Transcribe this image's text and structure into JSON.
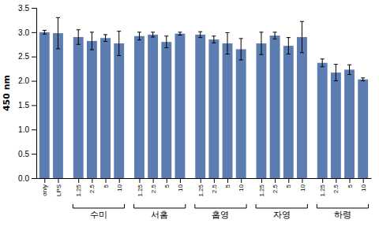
{
  "chart_data": {
    "type": "bar",
    "ylabel": "450 nm",
    "categories": [
      "only",
      "LPS",
      "1.25",
      "2.5",
      "5",
      "10",
      "1.25",
      "2.5",
      "5",
      "10",
      "1.25",
      "2.5",
      "5",
      "10",
      "1.25",
      "2.5",
      "5",
      "10",
      "1.25",
      "2.5",
      "5",
      "10"
    ],
    "values": [
      3.0,
      2.98,
      2.9,
      2.82,
      2.88,
      2.77,
      2.92,
      2.95,
      2.8,
      2.97,
      2.95,
      2.85,
      2.77,
      2.65,
      2.77,
      2.93,
      2.72,
      2.9,
      2.37,
      2.17,
      2.23,
      2.03
    ],
    "errors": [
      0.04,
      0.32,
      0.15,
      0.18,
      0.07,
      0.25,
      0.08,
      0.05,
      0.12,
      0.03,
      0.06,
      0.07,
      0.22,
      0.22,
      0.23,
      0.07,
      0.17,
      0.32,
      0.08,
      0.17,
      0.1,
      0.03
    ],
    "color": "#5b7db1",
    "ylim": [
      0,
      3.5
    ],
    "yticks": [
      {
        "value": 0,
        "label": "0.0"
      },
      0.5,
      {
        "value": 1,
        "label": "1.0"
      },
      1.5,
      {
        "value": 2,
        "label": "2.0"
      },
      2.5,
      {
        "value": 3,
        "label": "3.0"
      },
      3.5
    ],
    "groups": [
      {
        "label": "수미",
        "indices": [
          2,
          3,
          4,
          5
        ]
      },
      {
        "label": "서홈",
        "indices": [
          6,
          7,
          8,
          9
        ]
      },
      {
        "label": "홉영",
        "indices": [
          10,
          11,
          12,
          13
        ]
      },
      {
        "label": "자영",
        "indices": [
          14,
          15,
          16,
          17
        ]
      },
      {
        "label": "하령",
        "indices": [
          18,
          19,
          20,
          21
        ]
      }
    ],
    "grid": false
  }
}
